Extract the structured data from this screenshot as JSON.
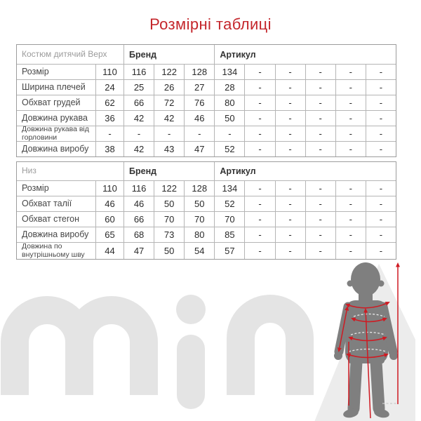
{
  "title": "Розмірні таблиці",
  "watermark_text": "min",
  "colors": {
    "title_red": "#c4262b",
    "arrow_red": "#cf1a22",
    "silhouette_gray": "#7f7f7f",
    "watermark_gray": "#e4e4e4",
    "shadow_gray": "#ececec"
  },
  "tables": [
    {
      "corner_label": "Костюм дитячий Верх",
      "brand_label": "Бренд",
      "article_label": "Артикул",
      "rows": [
        {
          "label": "Розмір",
          "values": [
            "110",
            "116",
            "122",
            "128",
            "134",
            "-",
            "-",
            "-",
            "-",
            "-"
          ]
        },
        {
          "label": "Ширина плечей",
          "values": [
            "24",
            "25",
            "26",
            "27",
            "28",
            "-",
            "-",
            "-",
            "-",
            "-"
          ]
        },
        {
          "label": "Обхват грудей",
          "values": [
            "62",
            "66",
            "72",
            "76",
            "80",
            "-",
            "-",
            "-",
            "-",
            "-"
          ]
        },
        {
          "label": "Довжина рукава",
          "values": [
            "36",
            "42",
            "42",
            "46",
            "50",
            "-",
            "-",
            "-",
            "-",
            "-"
          ]
        },
        {
          "label": "Довжина рукава від горловини",
          "values": [
            "-",
            "-",
            "-",
            "-",
            "-",
            "-",
            "-",
            "-",
            "-",
            "-"
          ]
        },
        {
          "label": "Довжина виробу",
          "values": [
            "38",
            "42",
            "43",
            "47",
            "52",
            "-",
            "-",
            "-",
            "-",
            "-"
          ]
        }
      ]
    },
    {
      "corner_label": "Низ",
      "brand_label": "Бренд",
      "article_label": "Артикул",
      "rows": [
        {
          "label": "Розмір",
          "values": [
            "110",
            "116",
            "122",
            "128",
            "134",
            "-",
            "-",
            "-",
            "-",
            "-"
          ]
        },
        {
          "label": "Обхват талії",
          "values": [
            "46",
            "46",
            "50",
            "50",
            "52",
            "-",
            "-",
            "-",
            "-",
            "-"
          ]
        },
        {
          "label": "Обхват стегон",
          "values": [
            "60",
            "66",
            "70",
            "70",
            "70",
            "-",
            "-",
            "-",
            "-",
            "-"
          ]
        },
        {
          "label": "Довжина виробу",
          "values": [
            "65",
            "68",
            "73",
            "80",
            "85",
            "-",
            "-",
            "-",
            "-",
            "-"
          ]
        },
        {
          "label": "Довжина по внутрішньому шву",
          "values": [
            "44",
            "47",
            "50",
            "54",
            "57",
            "-",
            "-",
            "-",
            "-",
            "-"
          ]
        }
      ]
    }
  ]
}
